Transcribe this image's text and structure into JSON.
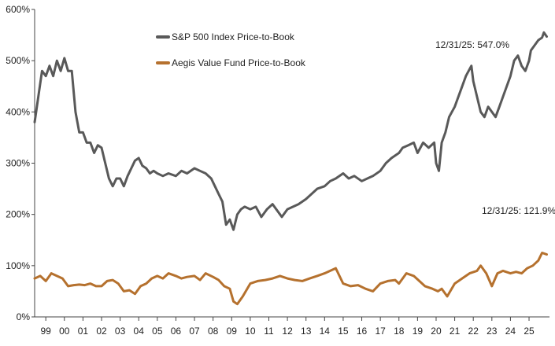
{
  "chart_data": {
    "type": "line",
    "title": "",
    "xlabel": "",
    "ylabel": "",
    "ylim": [
      0,
      600
    ],
    "y_ticks": [
      "0%",
      "100%",
      "200%",
      "300%",
      "400%",
      "500%",
      "600%"
    ],
    "y_tick_values": [
      0,
      100,
      200,
      300,
      400,
      500,
      600
    ],
    "x_ticks": [
      "99",
      "00",
      "01",
      "02",
      "03",
      "04",
      "05",
      "06",
      "07",
      "08",
      "09",
      "10",
      "11",
      "12",
      "13",
      "14",
      "15",
      "16",
      "17",
      "18",
      "19",
      "20",
      "21",
      "22",
      "23",
      "24",
      "25"
    ],
    "x_tick_values": [
      1999,
      2000,
      2001,
      2002,
      2003,
      2004,
      2005,
      2006,
      2007,
      2008,
      2009,
      2010,
      2011,
      2012,
      2013,
      2014,
      2015,
      2016,
      2017,
      2018,
      2019,
      2020,
      2021,
      2022,
      2023,
      2024,
      2025
    ],
    "xlim": [
      1998.4,
      2026.1
    ],
    "legend": "top-left",
    "grid": false,
    "series": [
      {
        "name": "S&P 500 Index Price-to-Book",
        "color": "#595959",
        "x": [
          1998.4,
          1998.6,
          1998.8,
          1999.0,
          1999.2,
          1999.4,
          1999.6,
          1999.8,
          2000.0,
          2000.2,
          2000.4,
          2000.6,
          2000.8,
          2001.0,
          2001.2,
          2001.4,
          2001.6,
          2001.8,
          2002.0,
          2002.2,
          2002.4,
          2002.6,
          2002.8,
          2003.0,
          2003.2,
          2003.4,
          2003.6,
          2003.8,
          2004.0,
          2004.2,
          2004.4,
          2004.6,
          2004.8,
          2005.0,
          2005.3,
          2005.6,
          2006.0,
          2006.3,
          2006.6,
          2007.0,
          2007.3,
          2007.6,
          2007.9,
          2008.1,
          2008.3,
          2008.5,
          2008.7,
          2008.9,
          2009.1,
          2009.3,
          2009.5,
          2009.7,
          2010.0,
          2010.3,
          2010.6,
          2010.9,
          2011.2,
          2011.5,
          2011.7,
          2012.0,
          2012.3,
          2012.6,
          2013.0,
          2013.3,
          2013.6,
          2014.0,
          2014.3,
          2014.6,
          2015.0,
          2015.3,
          2015.6,
          2016.0,
          2016.3,
          2016.6,
          2017.0,
          2017.3,
          2017.6,
          2018.0,
          2018.2,
          2018.5,
          2018.8,
          2019.0,
          2019.3,
          2019.6,
          2019.9,
          2020.0,
          2020.15,
          2020.3,
          2020.5,
          2020.7,
          2021.0,
          2021.3,
          2021.6,
          2021.9,
          2022.0,
          2022.2,
          2022.4,
          2022.6,
          2022.8,
          2023.0,
          2023.2,
          2023.4,
          2023.6,
          2023.8,
          2024.0,
          2024.2,
          2024.4,
          2024.6,
          2024.8,
          2025.0,
          2025.1,
          2025.3,
          2025.5,
          2025.7,
          2025.8,
          2025.95
        ],
        "values": [
          380,
          430,
          480,
          470,
          490,
          470,
          500,
          480,
          505,
          480,
          480,
          400,
          360,
          360,
          340,
          340,
          320,
          335,
          330,
          300,
          270,
          255,
          270,
          270,
          255,
          275,
          290,
          305,
          310,
          295,
          290,
          280,
          285,
          280,
          275,
          280,
          275,
          285,
          280,
          290,
          285,
          280,
          270,
          255,
          240,
          225,
          180,
          190,
          170,
          200,
          210,
          215,
          210,
          215,
          195,
          210,
          220,
          205,
          195,
          210,
          215,
          220,
          230,
          240,
          250,
          255,
          265,
          270,
          280,
          270,
          275,
          265,
          270,
          275,
          285,
          300,
          310,
          320,
          330,
          335,
          340,
          320,
          340,
          330,
          340,
          300,
          285,
          340,
          360,
          390,
          410,
          440,
          470,
          490,
          460,
          430,
          400,
          390,
          410,
          400,
          390,
          410,
          430,
          450,
          470,
          500,
          510,
          490,
          480,
          500,
          520,
          530,
          540,
          545,
          555,
          547
        ]
      },
      {
        "name": "Aegis Value Fund Price-to-Book",
        "color": "#b5712e",
        "x": [
          1998.4,
          1998.7,
          1999.0,
          1999.3,
          1999.6,
          1999.9,
          2000.2,
          2000.5,
          2000.8,
          2001.1,
          2001.4,
          2001.7,
          2002.0,
          2002.3,
          2002.6,
          2002.9,
          2003.2,
          2003.5,
          2003.8,
          2004.1,
          2004.4,
          2004.7,
          2005.0,
          2005.3,
          2005.6,
          2006.0,
          2006.3,
          2006.6,
          2007.0,
          2007.3,
          2007.6,
          2008.0,
          2008.3,
          2008.6,
          2008.9,
          2009.1,
          2009.3,
          2009.6,
          2010.0,
          2010.4,
          2010.8,
          2011.2,
          2011.6,
          2012.0,
          2012.4,
          2012.8,
          2013.2,
          2013.6,
          2014.0,
          2014.3,
          2014.6,
          2015.0,
          2015.4,
          2015.8,
          2016.2,
          2016.6,
          2017.0,
          2017.4,
          2017.8,
          2018.0,
          2018.4,
          2018.8,
          2019.1,
          2019.4,
          2019.8,
          2020.1,
          2020.3,
          2020.6,
          2021.0,
          2021.4,
          2021.8,
          2022.2,
          2022.4,
          2022.7,
          2023.0,
          2023.3,
          2023.6,
          2024.0,
          2024.3,
          2024.6,
          2024.9,
          2025.2,
          2025.5,
          2025.7,
          2025.95
        ],
        "values": [
          75,
          80,
          70,
          85,
          80,
          75,
          60,
          62,
          63,
          62,
          65,
          60,
          60,
          70,
          72,
          65,
          50,
          52,
          45,
          60,
          65,
          75,
          80,
          75,
          85,
          80,
          75,
          78,
          80,
          72,
          85,
          78,
          72,
          60,
          55,
          30,
          25,
          40,
          65,
          70,
          72,
          75,
          80,
          75,
          72,
          70,
          75,
          80,
          85,
          90,
          95,
          65,
          60,
          62,
          55,
          50,
          65,
          70,
          72,
          65,
          85,
          80,
          70,
          60,
          55,
          50,
          55,
          40,
          65,
          75,
          85,
          90,
          100,
          85,
          60,
          85,
          90,
          85,
          88,
          85,
          95,
          100,
          110,
          125,
          121.9
        ]
      }
    ],
    "annotations": [
      {
        "text": "12/31/25: 547.0%",
        "x": 2025.95,
        "y": 547.0,
        "series": "S&P 500 Index Price-to-Book"
      },
      {
        "text": "12/31/25: 121.9%",
        "x": 2025.95,
        "y": 121.9,
        "series": "Aegis Value Fund Price-to-Book"
      }
    ]
  }
}
